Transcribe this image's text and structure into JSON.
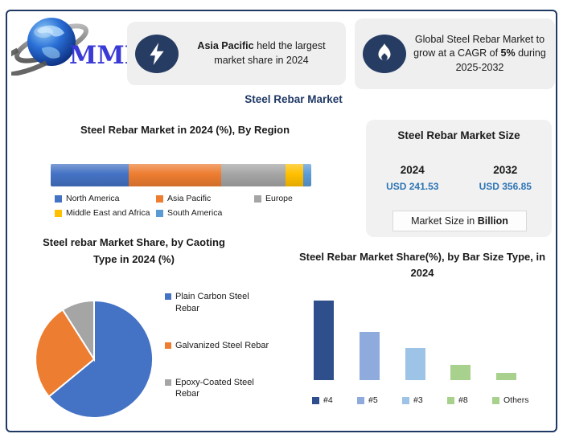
{
  "page_title": "Steel Rebar Market",
  "logo": {
    "text": "MMR"
  },
  "badge1": {
    "icon": "lightning",
    "bold": "Asia Pacific",
    "rest": " held the largest market share in 2024"
  },
  "badge2": {
    "icon": "flame",
    "pre": "Global Steel Rebar Market to grow at a CAGR of ",
    "bold": "5%",
    "post": " during 2025-2032"
  },
  "market_size": {
    "title": "Steel Rebar Market Size",
    "year1": "2024",
    "value1": "USD 241.53",
    "year2": "2032",
    "value2": "USD 356.85",
    "note_pre": "Market Size in ",
    "note_bold": "Billion"
  },
  "chart_data": [
    {
      "type": "bar",
      "subtype": "horizontal-stacked",
      "title": "Steel Rebar Market in 2024 (%), By Region",
      "categories": [
        "North America",
        "Asia Pacific",
        "Europe",
        "Middle East and Africa",
        "South America"
      ],
      "values": [
        30,
        35.5,
        24.5,
        7,
        3
      ],
      "colors": [
        "#4472C4",
        "#ED7D31",
        "#A5A5A5",
        "#FFC000",
        "#5B9BD5"
      ],
      "values_estimated": true,
      "legend_position": "below"
    },
    {
      "type": "pie",
      "title": "Steel rebar Market Share, by Caoting Type in 2024 (%)",
      "categories": [
        "Plain Carbon Steel Rebar",
        "Galvanized Steel Rebar",
        "Epoxy-Coated Steel Rebar"
      ],
      "values": [
        64,
        27,
        9
      ],
      "colors": [
        "#4472C4",
        "#ED7D31",
        "#A5A5A5"
      ],
      "values_estimated": true,
      "legend_position": "right"
    },
    {
      "type": "bar",
      "subtype": "vertical",
      "title": "Steel Rebar Market Share(%), by Bar Size Type, in 2024",
      "categories": [
        "#4",
        "#5",
        "#3",
        "#8",
        "Others"
      ],
      "values": [
        100,
        61,
        40,
        19,
        9
      ],
      "colors": [
        "#2E4F8C",
        "#8FAADC",
        "#9DC3E6",
        "#A9D18E",
        "#A9D18E"
      ],
      "values_estimated": true,
      "axis_labels_shown": false,
      "legend_position": "below"
    }
  ],
  "colors": {
    "frame_border": "#1F3864",
    "title_navy": "#1F3864",
    "value_blue": "#2E75B6",
    "badge_bg": "#EFEFEF",
    "badge_icon_bg": "#273C63",
    "panel_bg": "#F1F1F1"
  }
}
